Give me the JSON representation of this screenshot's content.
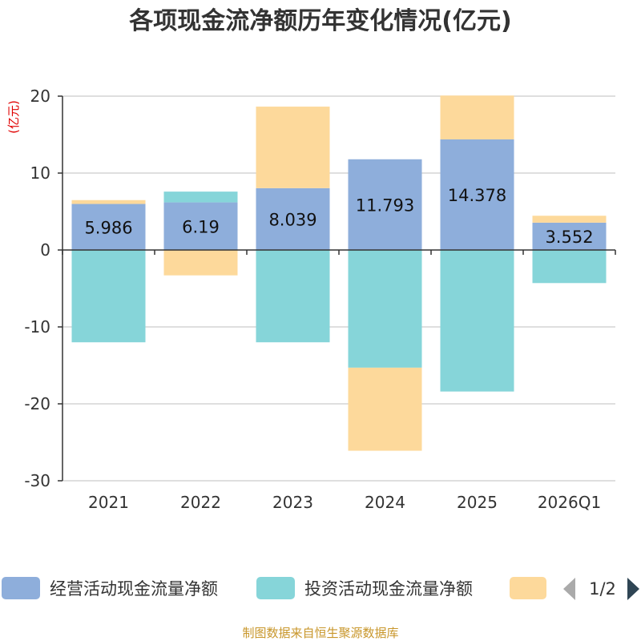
{
  "chart_data": {
    "type": "bar",
    "stacked": true,
    "title": "各项现金流净额历年变化情况(亿元)",
    "unit_label": "(亿元)",
    "categories": [
      "2021",
      "2022",
      "2023",
      "2024",
      "2025",
      "2026Q1"
    ],
    "ylim": [
      -30,
      20
    ],
    "yticks": [
      20,
      10,
      0,
      -10,
      -20,
      -30
    ],
    "grid": true,
    "series": [
      {
        "name": "经营活动现金流量净额",
        "color": "#8eaedb",
        "values": [
          5.986,
          6.19,
          8.039,
          11.793,
          14.378,
          3.552
        ],
        "show_labels": true
      },
      {
        "name": "投资活动现金流量净额",
        "color": "#86d5d9",
        "values": [
          -12.0,
          1.4,
          -12.0,
          -15.3,
          -18.4,
          -4.3
        ],
        "show_labels": false
      },
      {
        "name": "",
        "color": "#fdd99b",
        "values": [
          0.5,
          -3.3,
          10.6,
          -10.8,
          5.7,
          0.9
        ],
        "show_labels": false
      }
    ],
    "legend": {
      "position": "bottom",
      "page": "1/2"
    }
  },
  "source_text": "制图数据来自恒生聚源数据库"
}
